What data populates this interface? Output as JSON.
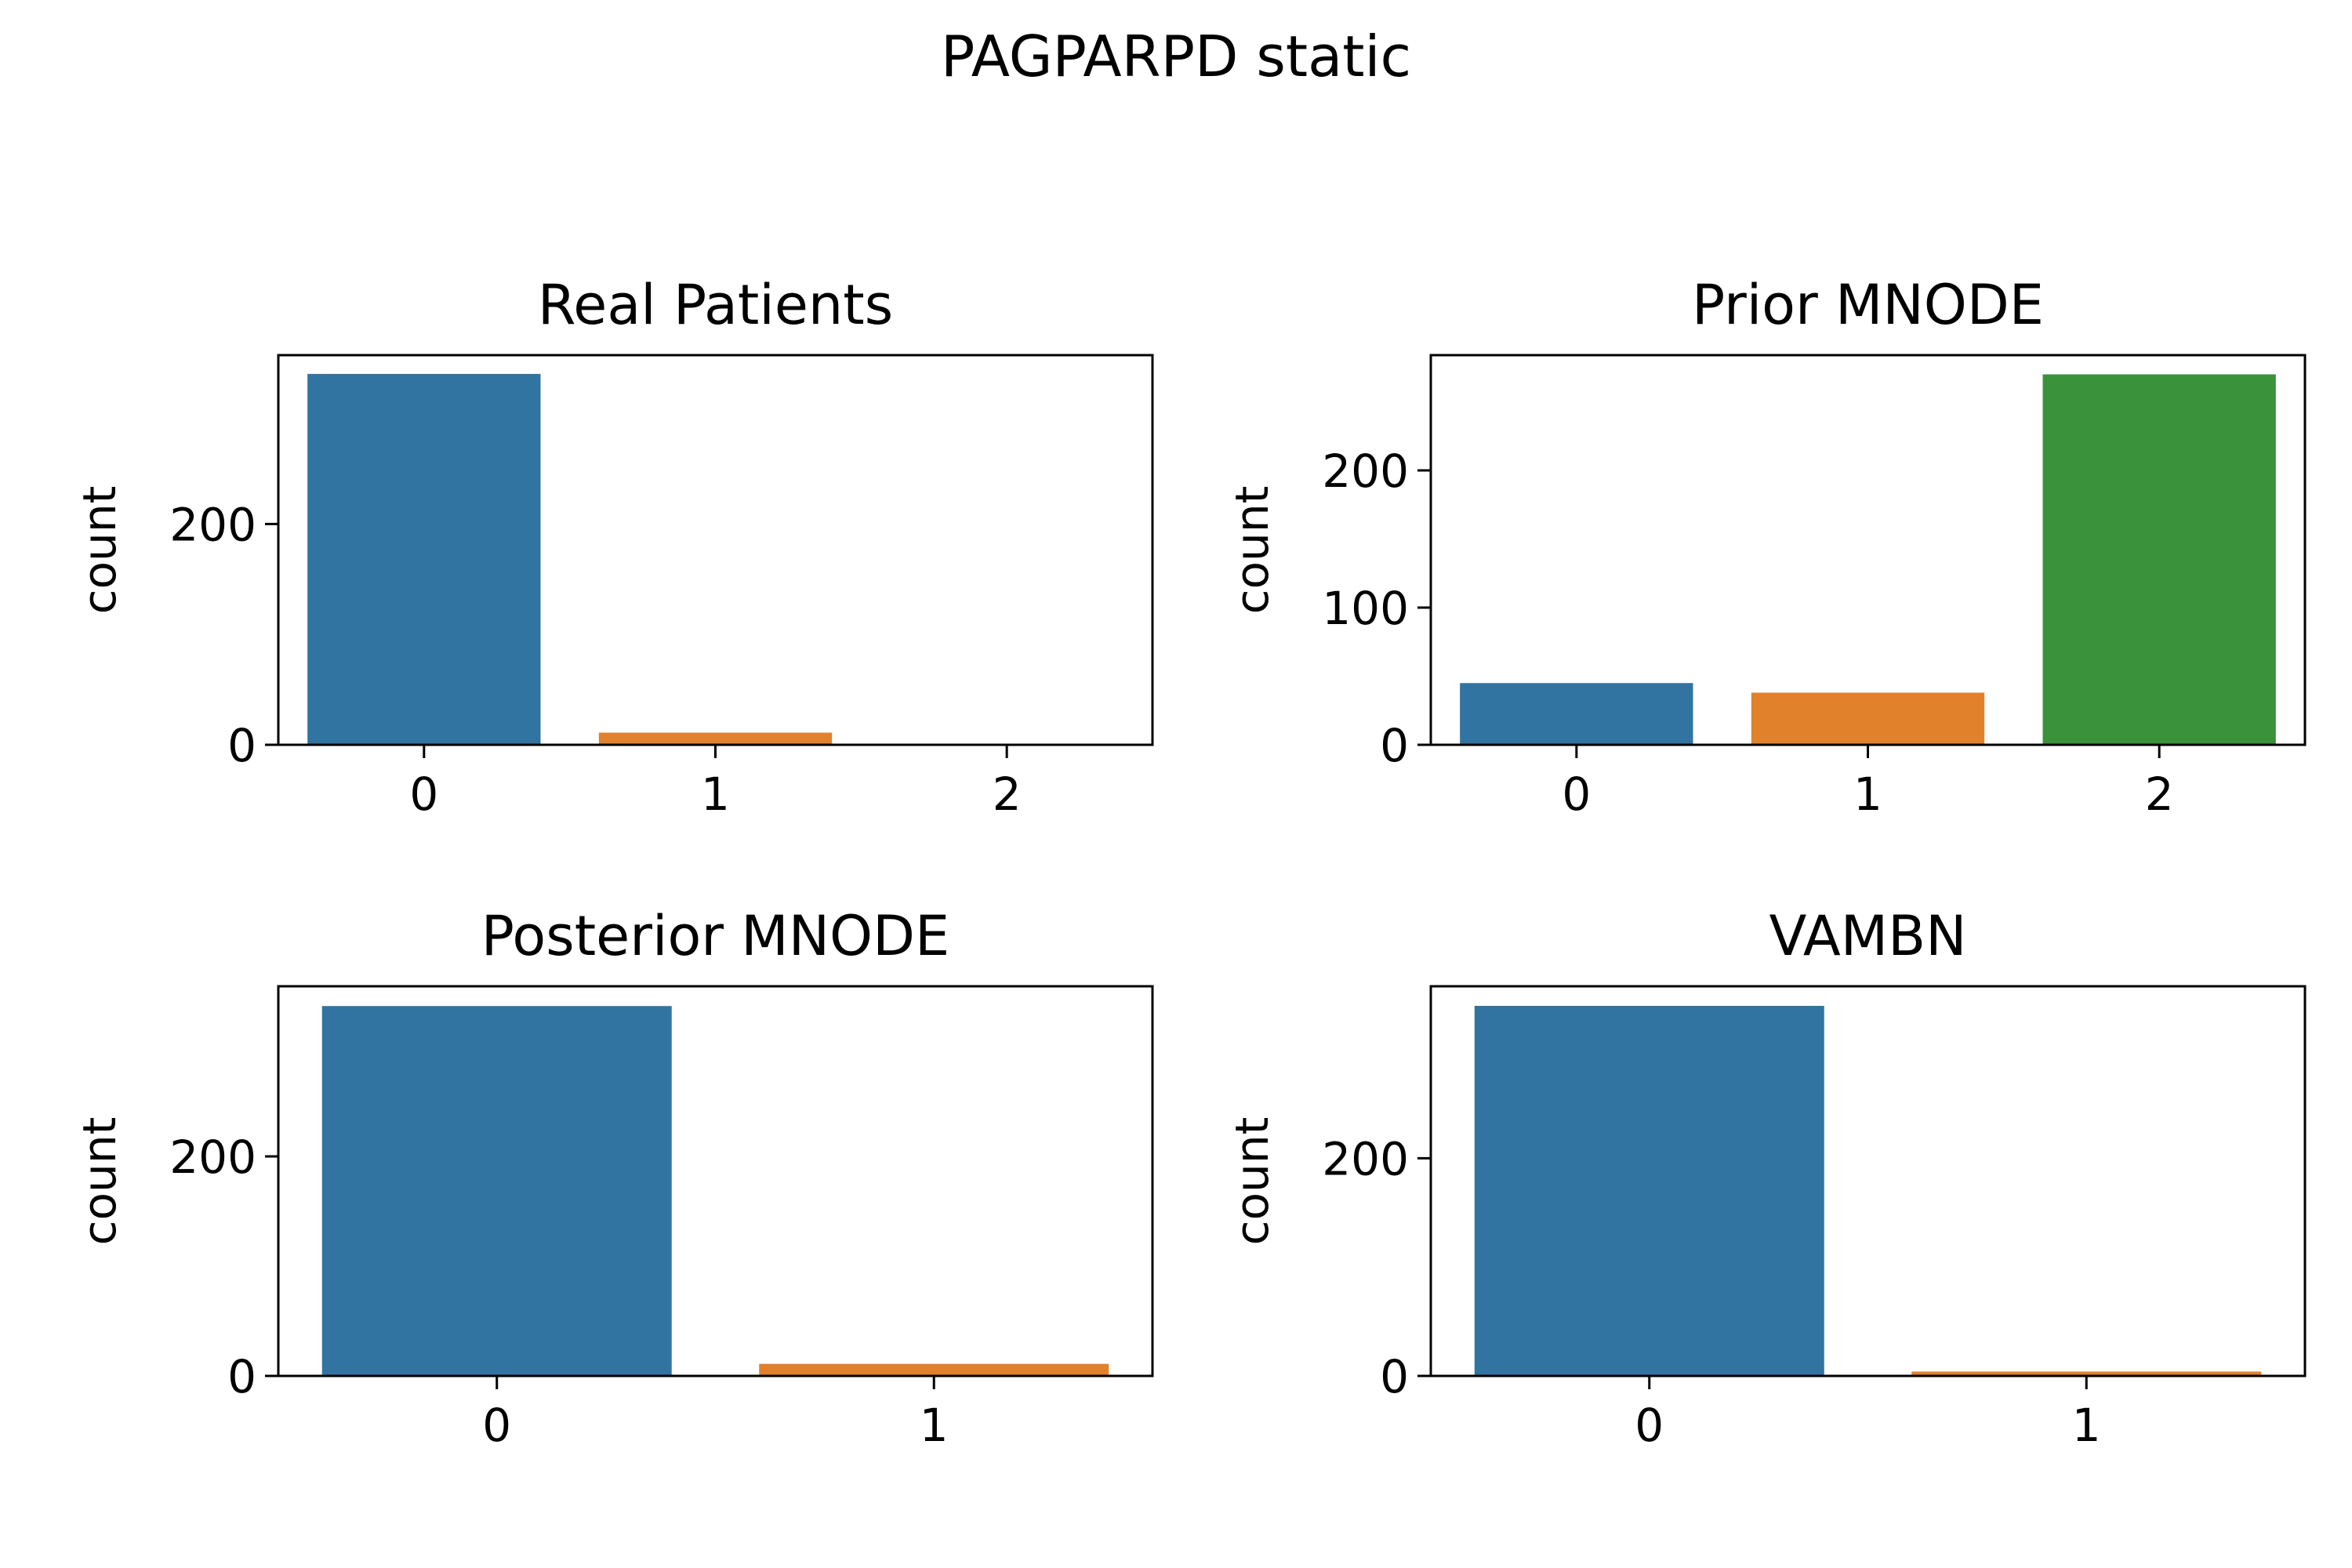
{
  "figure": {
    "title": "PAGPARPD static"
  },
  "chart_data": [
    {
      "type": "bar",
      "title": "Real Patients",
      "xlabel": "",
      "ylabel": "count",
      "categories": [
        "0",
        "1",
        "2"
      ],
      "values": [
        336,
        11,
        0
      ],
      "colors": [
        "#3274a1",
        "#e1812c",
        "#3a923a"
      ],
      "ylim": [
        0,
        353
      ],
      "yticks": [
        0,
        200
      ]
    },
    {
      "type": "bar",
      "title": "Prior MNODE",
      "xlabel": "",
      "ylabel": "count",
      "categories": [
        "0",
        "1",
        "2"
      ],
      "values": [
        45,
        38,
        270
      ],
      "colors": [
        "#3274a1",
        "#e1812c",
        "#3a923a"
      ],
      "ylim": [
        0,
        284
      ],
      "yticks": [
        0,
        100,
        200
      ]
    },
    {
      "type": "bar",
      "title": "Posterior MNODE",
      "xlabel": "",
      "ylabel": "count",
      "categories": [
        "0",
        "1"
      ],
      "values": [
        337,
        11
      ],
      "colors": [
        "#3274a1",
        "#e1812c"
      ],
      "ylim": [
        0,
        355
      ],
      "yticks": [
        0,
        200
      ]
    },
    {
      "type": "bar",
      "title": "VAMBN",
      "xlabel": "",
      "ylabel": "count",
      "categories": [
        "0",
        "1"
      ],
      "values": [
        340,
        4
      ],
      "colors": [
        "#3274a1",
        "#e1812c"
      ],
      "ylim": [
        0,
        358
      ],
      "yticks": [
        0,
        200
      ]
    }
  ]
}
